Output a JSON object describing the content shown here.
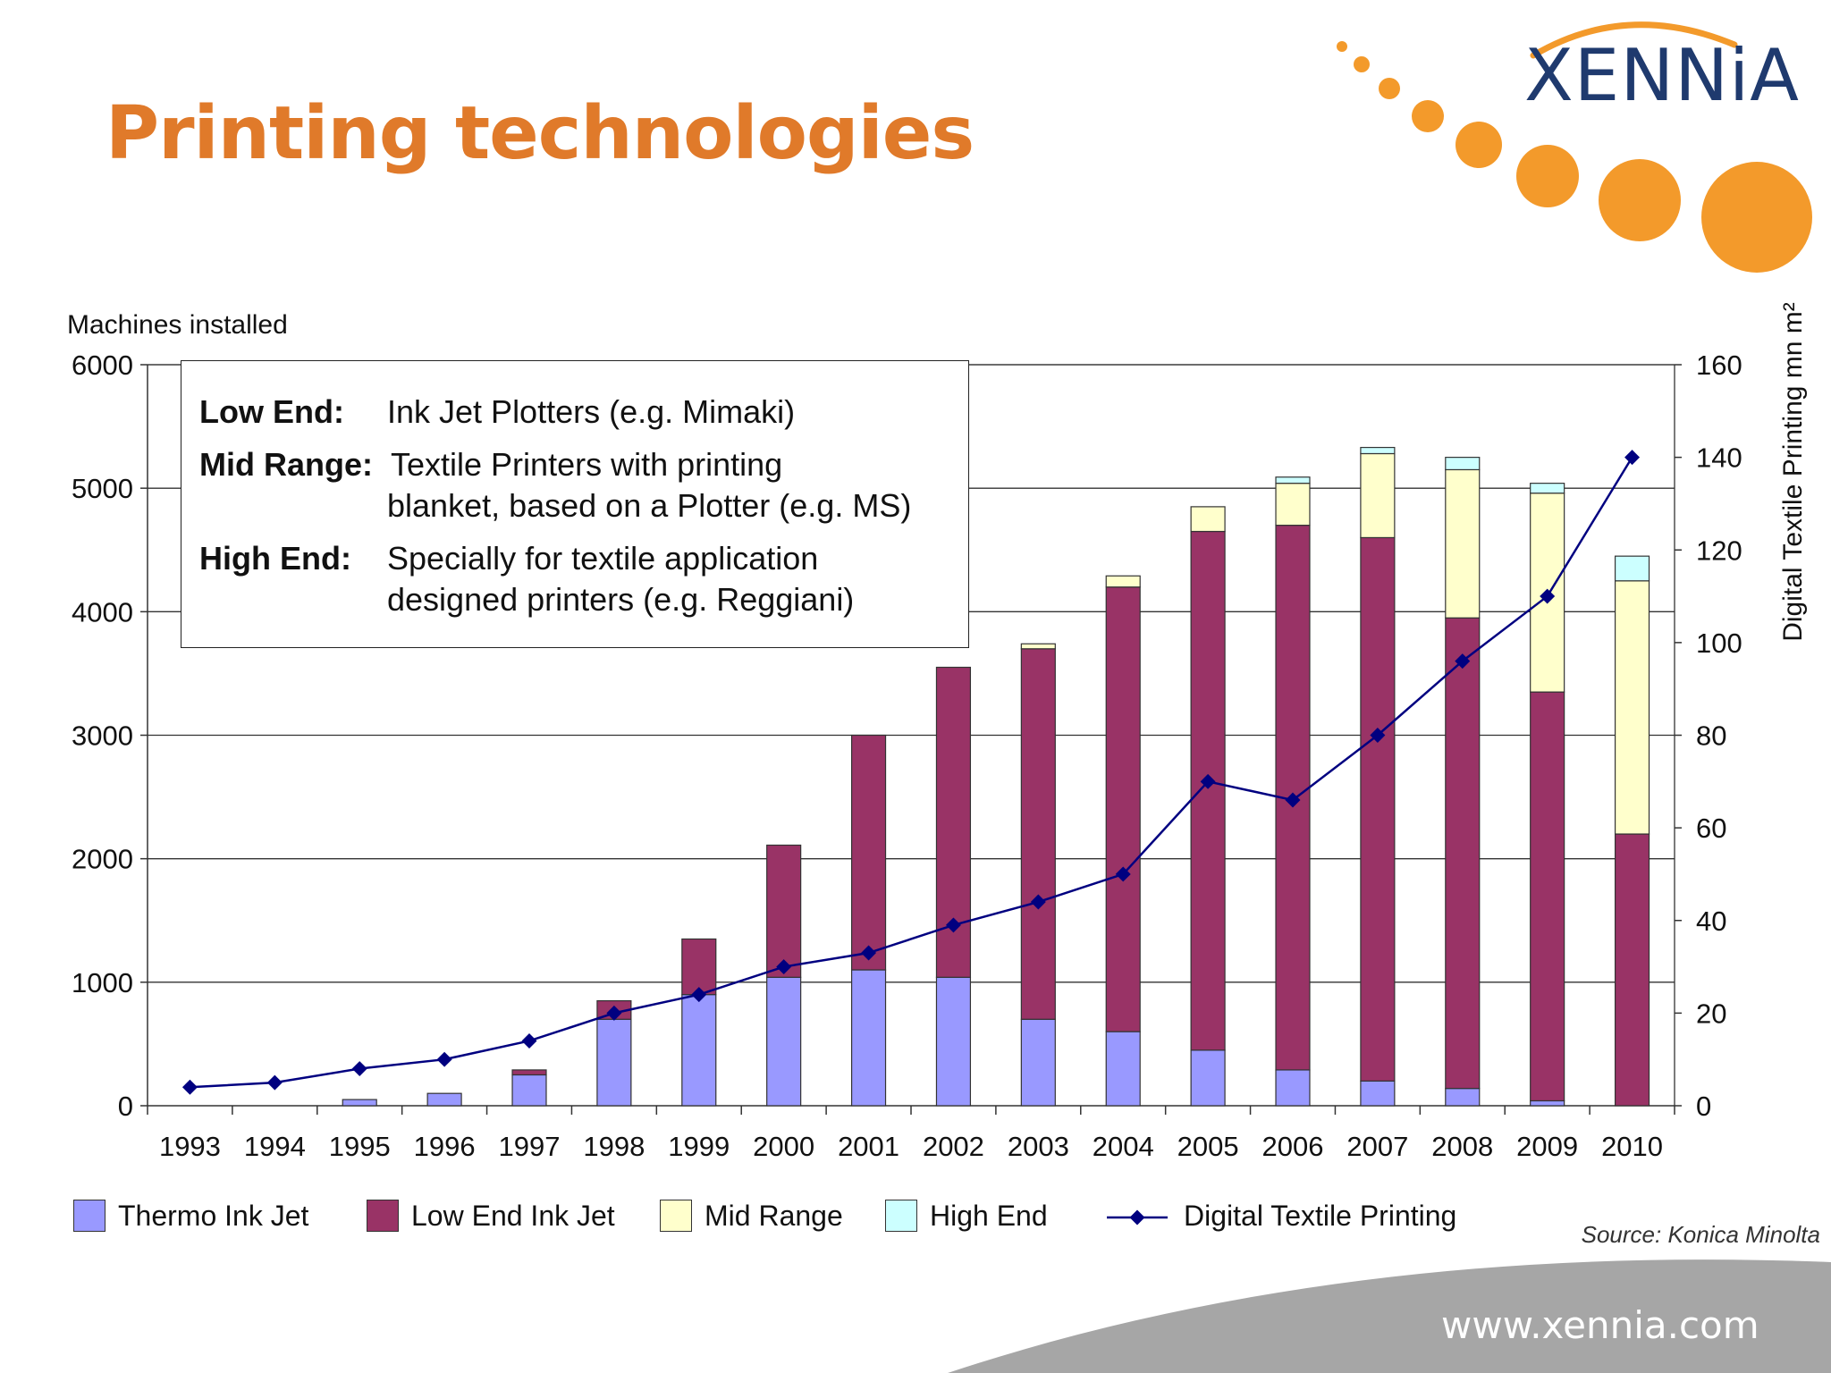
{
  "slide": {
    "title": "Printing technologies",
    "logo_text": "XENNiA",
    "website": "www.xennia.com",
    "source": "Source: Konica Minolta",
    "accent_color": "#e07a2a",
    "logo_color": "#1f3a6e",
    "footer_color": "#a6a6a6"
  },
  "infobox": {
    "rows": [
      {
        "key": "Low End:",
        "lines": [
          "Ink Jet Plotters (e.g. Mimaki)"
        ]
      },
      {
        "key": "Mid Range:",
        "lines": [
          "Textile Printers with printing",
          "blanket, based on a Plotter (e.g. MS)"
        ]
      },
      {
        "key": "High End:",
        "lines": [
          "Specially for textile application",
          "designed printers (e.g. Reggiani)"
        ]
      }
    ]
  },
  "chart_data": {
    "type": "bar",
    "stacked": true,
    "left_axis_label": "Machines installed",
    "right_axis_label": "Digital Textile Printing mn m²",
    "categories": [
      "1993",
      "1994",
      "1995",
      "1996",
      "1997",
      "1998",
      "1999",
      "2000",
      "2001",
      "2002",
      "2003",
      "2004",
      "2005",
      "2006",
      "2007",
      "2008",
      "2009",
      "2010"
    ],
    "ylim_left": [
      0,
      6000
    ],
    "yticks_left": [
      0,
      1000,
      2000,
      3000,
      4000,
      5000,
      6000
    ],
    "ylim_right": [
      0,
      160
    ],
    "yticks_right": [
      0,
      20,
      40,
      60,
      80,
      100,
      120,
      140,
      160
    ],
    "grid": true,
    "legend_position": "bottom",
    "series": [
      {
        "name": "Thermo Ink Jet",
        "color": "#9999ff",
        "axis": "left",
        "kind": "bar",
        "values": [
          0,
          0,
          50,
          100,
          250,
          700,
          900,
          1040,
          1100,
          1040,
          700,
          600,
          450,
          290,
          200,
          140,
          40,
          0
        ]
      },
      {
        "name": "Low End Ink Jet",
        "color": "#993366",
        "axis": "left",
        "kind": "bar",
        "values": [
          0,
          0,
          0,
          0,
          40,
          150,
          450,
          1070,
          1900,
          2510,
          3000,
          3600,
          4200,
          4410,
          4400,
          3810,
          3310,
          2200
        ]
      },
      {
        "name": "Mid Range",
        "color": "#ffffcc",
        "axis": "left",
        "kind": "bar",
        "values": [
          0,
          0,
          0,
          0,
          0,
          0,
          0,
          0,
          0,
          0,
          40,
          90,
          200,
          340,
          680,
          1200,
          1610,
          2050
        ]
      },
      {
        "name": "High End",
        "color": "#ccffff",
        "axis": "left",
        "kind": "bar",
        "values": [
          0,
          0,
          0,
          0,
          0,
          0,
          0,
          0,
          0,
          0,
          0,
          0,
          0,
          50,
          50,
          100,
          80,
          200
        ]
      },
      {
        "name": "Digital Textile Printing",
        "color": "#000080",
        "axis": "right",
        "kind": "line",
        "values": [
          4,
          5,
          8,
          10,
          14,
          20,
          24,
          30,
          33,
          39,
          44,
          50,
          70,
          66,
          80,
          96,
          110,
          140
        ]
      }
    ]
  }
}
